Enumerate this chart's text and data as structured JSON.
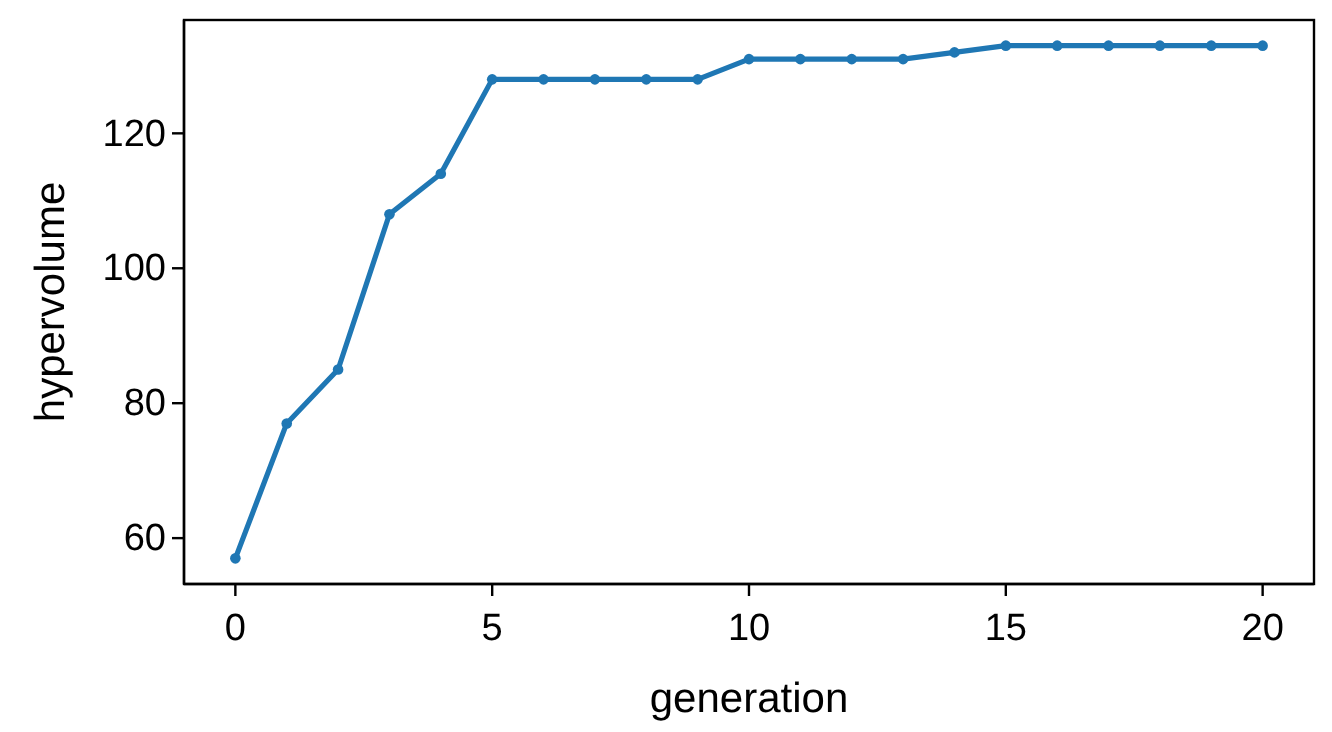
{
  "chart_data": {
    "type": "line",
    "xlabel": "generation",
    "ylabel": "hypervolume",
    "x": [
      0,
      1,
      2,
      3,
      4,
      5,
      6,
      7,
      8,
      9,
      10,
      11,
      12,
      13,
      14,
      15,
      16,
      17,
      18,
      19,
      20
    ],
    "series": [
      {
        "color": "#1f77b4",
        "values": [
          57,
          77,
          85,
          108,
          114,
          128,
          128,
          128,
          128,
          128,
          131,
          131,
          131,
          131,
          132,
          133,
          133,
          133,
          133,
          133,
          133
        ]
      }
    ],
    "xlim": [
      -1,
      21
    ],
    "ylim": [
      53.2,
      136.8
    ],
    "xticks": [
      0,
      5,
      10,
      15,
      20
    ],
    "yticks": [
      60,
      80,
      100,
      120
    ],
    "grid": false,
    "marker": "circle",
    "line_style": "solid"
  }
}
